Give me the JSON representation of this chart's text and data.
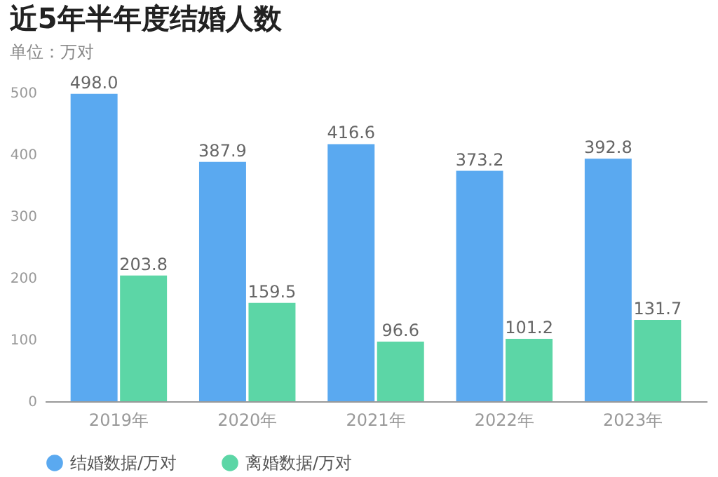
{
  "chart_data": {
    "type": "bar",
    "title": "近5年半年度结婚人数",
    "subtitle": "单位：万对",
    "categories": [
      "2019年",
      "2020年",
      "2021年",
      "2022年",
      "2023年"
    ],
    "series": [
      {
        "name": "结婚数据/万对",
        "color": "#5aa9f0",
        "values": [
          498.0,
          387.9,
          416.6,
          373.2,
          392.8
        ],
        "value_labels": [
          "498.0",
          "387.9",
          "416.6",
          "373.2",
          "392.8"
        ]
      },
      {
        "name": "离婚数据/万对",
        "color": "#5cd6a6",
        "values": [
          203.8,
          159.5,
          96.6,
          101.2,
          131.7
        ],
        "value_labels": [
          "203.8",
          "159.5",
          "96.6",
          "101.2",
          "131.7"
        ]
      }
    ],
    "ylim": [
      0,
      500
    ],
    "yticks": [
      0,
      100,
      200,
      300,
      400,
      500
    ],
    "grid": false,
    "legend": "bottom"
  }
}
